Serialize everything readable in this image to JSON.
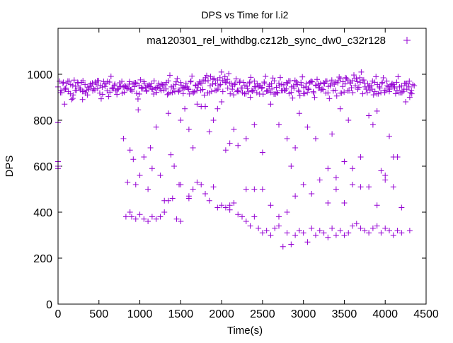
{
  "chart_data": {
    "type": "scatter",
    "title": "DPS vs Time for l.i2",
    "xlabel": "Time(s)",
    "ylabel": "DPS",
    "xlim": [
      0,
      4500
    ],
    "ylim": [
      0,
      1200
    ],
    "x_ticks": [
      0,
      500,
      1000,
      1500,
      2000,
      2500,
      3000,
      3500,
      4000,
      4500
    ],
    "y_ticks": [
      0,
      200,
      400,
      600,
      800,
      1000
    ],
    "grid": false,
    "legend": {
      "position": "top-right",
      "label": "ma120301_rel_withdbg.cz12b_sync_dw0_c32r128",
      "color": "#9400d3"
    },
    "series": [
      {
        "name": "ma120301_rel_withdbg.cz12b_sync_dw0_c32r128",
        "color": "#9400d3",
        "band_x_start": 0,
        "band_x_step": 30,
        "band_y": [
          945,
          920,
          960,
          935,
          970,
          915,
          950,
          930,
          965,
          940,
          925,
          955,
          910,
          948,
          962,
          932,
          972,
          918,
          944,
          958,
          928,
          966,
          938,
          952,
          912,
          947,
          969,
          922,
          941,
          957,
          933,
          963,
          917,
          951,
          937,
          968,
          926,
          946,
          959,
          914,
          943,
          961,
          929,
          954,
          936,
          971,
          921,
          949,
          956,
          931,
          964,
          916,
          945,
          939,
          967,
          924,
          953,
          942,
          960,
          934,
          970,
          919,
          950,
          957,
          930,
          975,
          985,
          972,
          990,
          978,
          960,
          935,
          955,
          925,
          965,
          940,
          915,
          948,
          962,
          930,
          970,
          920,
          950,
          938,
          966,
          926,
          946,
          959,
          914,
          943,
          961,
          929,
          954,
          936,
          971,
          921,
          949,
          956,
          931,
          964,
          916,
          945,
          939,
          967,
          924,
          953,
          942,
          960,
          934,
          970,
          919,
          950,
          957,
          930,
          963,
          918,
          947,
          958,
          928,
          966,
          972,
          980,
          968,
          985,
          975,
          960,
          920,
          950,
          935,
          965,
          915,
          945,
          960,
          930,
          970,
          925,
          955,
          940,
          965,
          920,
          950,
          935,
          960,
          945,
          930
        ],
        "points": [
          [
            0,
            790
          ],
          [
            0,
            600
          ],
          [
            0,
            620
          ],
          [
            0,
            590
          ],
          [
            80,
            870
          ],
          [
            180,
            895
          ],
          [
            300,
            890
          ],
          [
            800,
            720
          ],
          [
            850,
            530
          ],
          [
            880,
            670
          ],
          [
            920,
            630
          ],
          [
            950,
            520
          ],
          [
            980,
            845
          ],
          [
            1000,
            560
          ],
          [
            1050,
            640
          ],
          [
            1100,
            500
          ],
          [
            1130,
            680
          ],
          [
            1150,
            590
          ],
          [
            1200,
            770
          ],
          [
            1250,
            560
          ],
          [
            1300,
            450
          ],
          [
            1350,
            830
          ],
          [
            1380,
            650
          ],
          [
            1420,
            600
          ],
          [
            1480,
            520
          ],
          [
            1500,
            800
          ],
          [
            1550,
            850
          ],
          [
            1600,
            760
          ],
          [
            1650,
            680
          ],
          [
            1700,
            870
          ],
          [
            1750,
            860
          ],
          [
            1800,
            860
          ],
          [
            1850,
            750
          ],
          [
            1900,
            800
          ],
          [
            1950,
            850
          ],
          [
            2000,
            880
          ],
          [
            2050,
            670
          ],
          [
            2100,
            700
          ],
          [
            2150,
            760
          ],
          [
            2200,
            690
          ],
          [
            2300,
            720
          ],
          [
            2350,
            900
          ],
          [
            2400,
            780
          ],
          [
            2500,
            660
          ],
          [
            2600,
            870
          ],
          [
            2700,
            780
          ],
          [
            2800,
            720
          ],
          [
            2850,
            600
          ],
          [
            2900,
            680
          ],
          [
            2950,
            830
          ],
          [
            3050,
            770
          ],
          [
            3150,
            720
          ],
          [
            3300,
            590
          ],
          [
            3350,
            740
          ],
          [
            3400,
            500
          ],
          [
            3450,
            850
          ],
          [
            3500,
            620
          ],
          [
            3550,
            800
          ],
          [
            3600,
            590
          ],
          [
            3700,
            640
          ],
          [
            3800,
            820
          ],
          [
            3850,
            780
          ],
          [
            3900,
            840
          ],
          [
            3950,
            580
          ],
          [
            4000,
            540
          ],
          [
            4050,
            730
          ],
          [
            4100,
            640
          ],
          [
            4150,
            640
          ],
          [
            4200,
            420
          ],
          [
            4250,
            880
          ],
          [
            4300,
            900
          ],
          [
            830,
            380
          ],
          [
            880,
            400
          ],
          [
            900,
            380
          ],
          [
            950,
            370
          ],
          [
            1000,
            390
          ],
          [
            1050,
            370
          ],
          [
            1100,
            360
          ],
          [
            1150,
            380
          ],
          [
            1200,
            370
          ],
          [
            1250,
            380
          ],
          [
            1300,
            400
          ],
          [
            1350,
            450
          ],
          [
            1400,
            460
          ],
          [
            1450,
            370
          ],
          [
            1500,
            520
          ],
          [
            1600,
            470
          ],
          [
            1650,
            500
          ],
          [
            1700,
            530
          ],
          [
            1750,
            520
          ],
          [
            1800,
            480
          ],
          [
            1850,
            450
          ],
          [
            1900,
            510
          ],
          [
            1950,
            420
          ],
          [
            2000,
            430
          ],
          [
            2050,
            420
          ],
          [
            2100,
            410
          ],
          [
            2150,
            440
          ],
          [
            2200,
            390
          ],
          [
            2250,
            380
          ],
          [
            2300,
            360
          ],
          [
            2350,
            340
          ],
          [
            2400,
            380
          ],
          [
            2450,
            330
          ],
          [
            2500,
            310
          ],
          [
            2550,
            320
          ],
          [
            2600,
            300
          ],
          [
            2650,
            330
          ],
          [
            2700,
            340
          ],
          [
            2750,
            250
          ],
          [
            2800,
            310
          ],
          [
            2850,
            260
          ],
          [
            2900,
            300
          ],
          [
            2950,
            320
          ],
          [
            3000,
            310
          ],
          [
            3050,
            270
          ],
          [
            3100,
            330
          ],
          [
            3150,
            300
          ],
          [
            3200,
            320
          ],
          [
            3250,
            310
          ],
          [
            3300,
            290
          ],
          [
            3350,
            330
          ],
          [
            3400,
            300
          ],
          [
            3450,
            320
          ],
          [
            3500,
            300
          ],
          [
            3550,
            310
          ],
          [
            3600,
            340
          ],
          [
            3650,
            350
          ],
          [
            3700,
            330
          ],
          [
            3750,
            320
          ],
          [
            3800,
            310
          ],
          [
            3850,
            330
          ],
          [
            3900,
            340
          ],
          [
            3950,
            310
          ],
          [
            4000,
            330
          ],
          [
            4050,
            320
          ],
          [
            4100,
            300
          ],
          [
            4150,
            320
          ],
          [
            4200,
            310
          ],
          [
            4300,
            320
          ],
          [
            1500,
            360
          ],
          [
            1600,
            460
          ],
          [
            2100,
            430
          ],
          [
            2300,
            500
          ],
          [
            2400,
            500
          ],
          [
            2500,
            500
          ],
          [
            2600,
            430
          ],
          [
            2700,
            380
          ],
          [
            2800,
            400
          ],
          [
            2900,
            470
          ],
          [
            3000,
            520
          ],
          [
            3100,
            480
          ],
          [
            3200,
            540
          ],
          [
            3300,
            440
          ],
          [
            3400,
            550
          ],
          [
            3500,
            440
          ],
          [
            3600,
            520
          ],
          [
            3700,
            510
          ],
          [
            3800,
            510
          ],
          [
            3900,
            430
          ],
          [
            4000,
            560
          ],
          [
            4100,
            510
          ]
        ]
      }
    ]
  }
}
